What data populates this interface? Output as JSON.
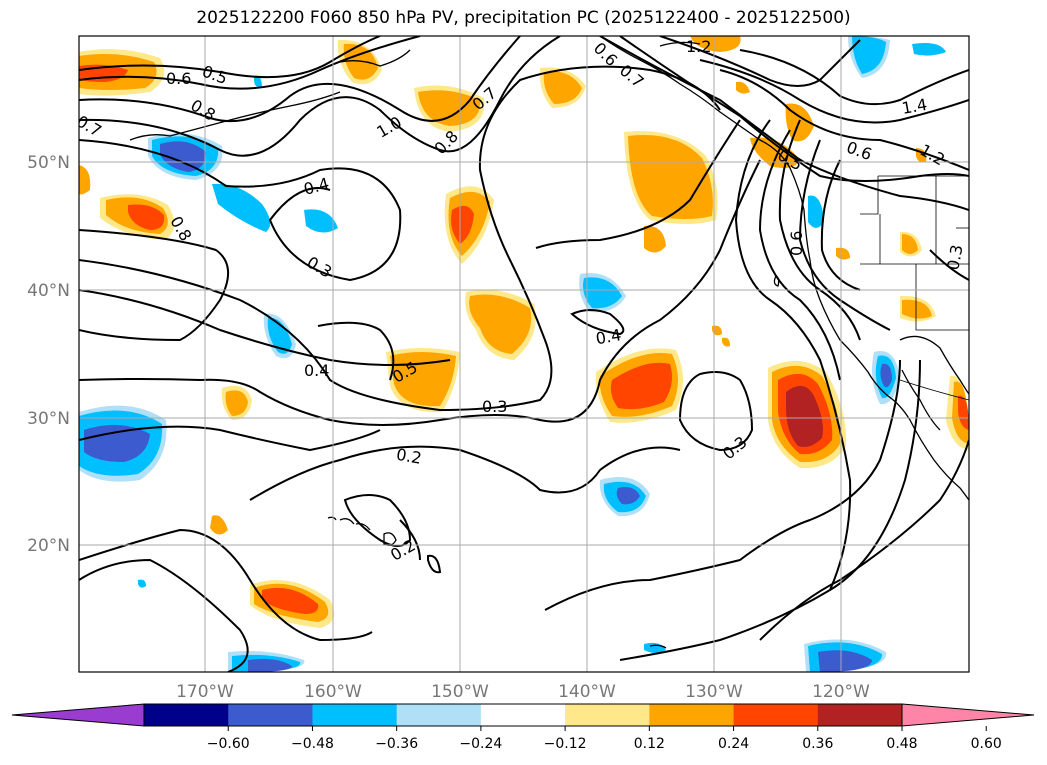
{
  "title": "2025122200 F060 850 hPa PV, precipitation PC (2025122400 - 2025122500)",
  "map": {
    "lat_labels": [
      "50°N",
      "40°N",
      "30°N",
      "20°N"
    ],
    "lon_labels": [
      "170°W",
      "160°W",
      "150°W",
      "140°W",
      "130°W",
      "120°W"
    ],
    "contour_labels": [
      "1.2",
      "0.6",
      "0.5",
      "0.7",
      "0.6",
      "0.8",
      "0.7",
      "1.0",
      "0.8",
      "0.7",
      "0.8",
      "0.4",
      "0.3",
      "0.5",
      "0.4",
      "0.3",
      "0.4",
      "0.2",
      "0.3",
      "0.2",
      "1.4",
      "1.2",
      "0.6",
      "0.5",
      "0.6",
      "0.3"
    ]
  },
  "colorbar": {
    "colors": [
      "#9a3ccf",
      "#00008b",
      "#3b5bcf",
      "#00bfff",
      "#b0e0f8",
      "#ffffff",
      "#ffe88a",
      "#ffa500",
      "#ff4500",
      "#b22222",
      "#ff85a8"
    ],
    "ticks": [
      "−0.60",
      "−0.48",
      "−0.36",
      "−0.24",
      "−0.12",
      "0.12",
      "0.24",
      "0.36",
      "0.48",
      "0.60"
    ]
  },
  "legend_colors": {
    "positive": [
      "#ffe88a",
      "#ffa500",
      "#ff4500",
      "#b22222"
    ],
    "negative": [
      "#b0e0f8",
      "#00bfff",
      "#3b5bcf"
    ]
  }
}
